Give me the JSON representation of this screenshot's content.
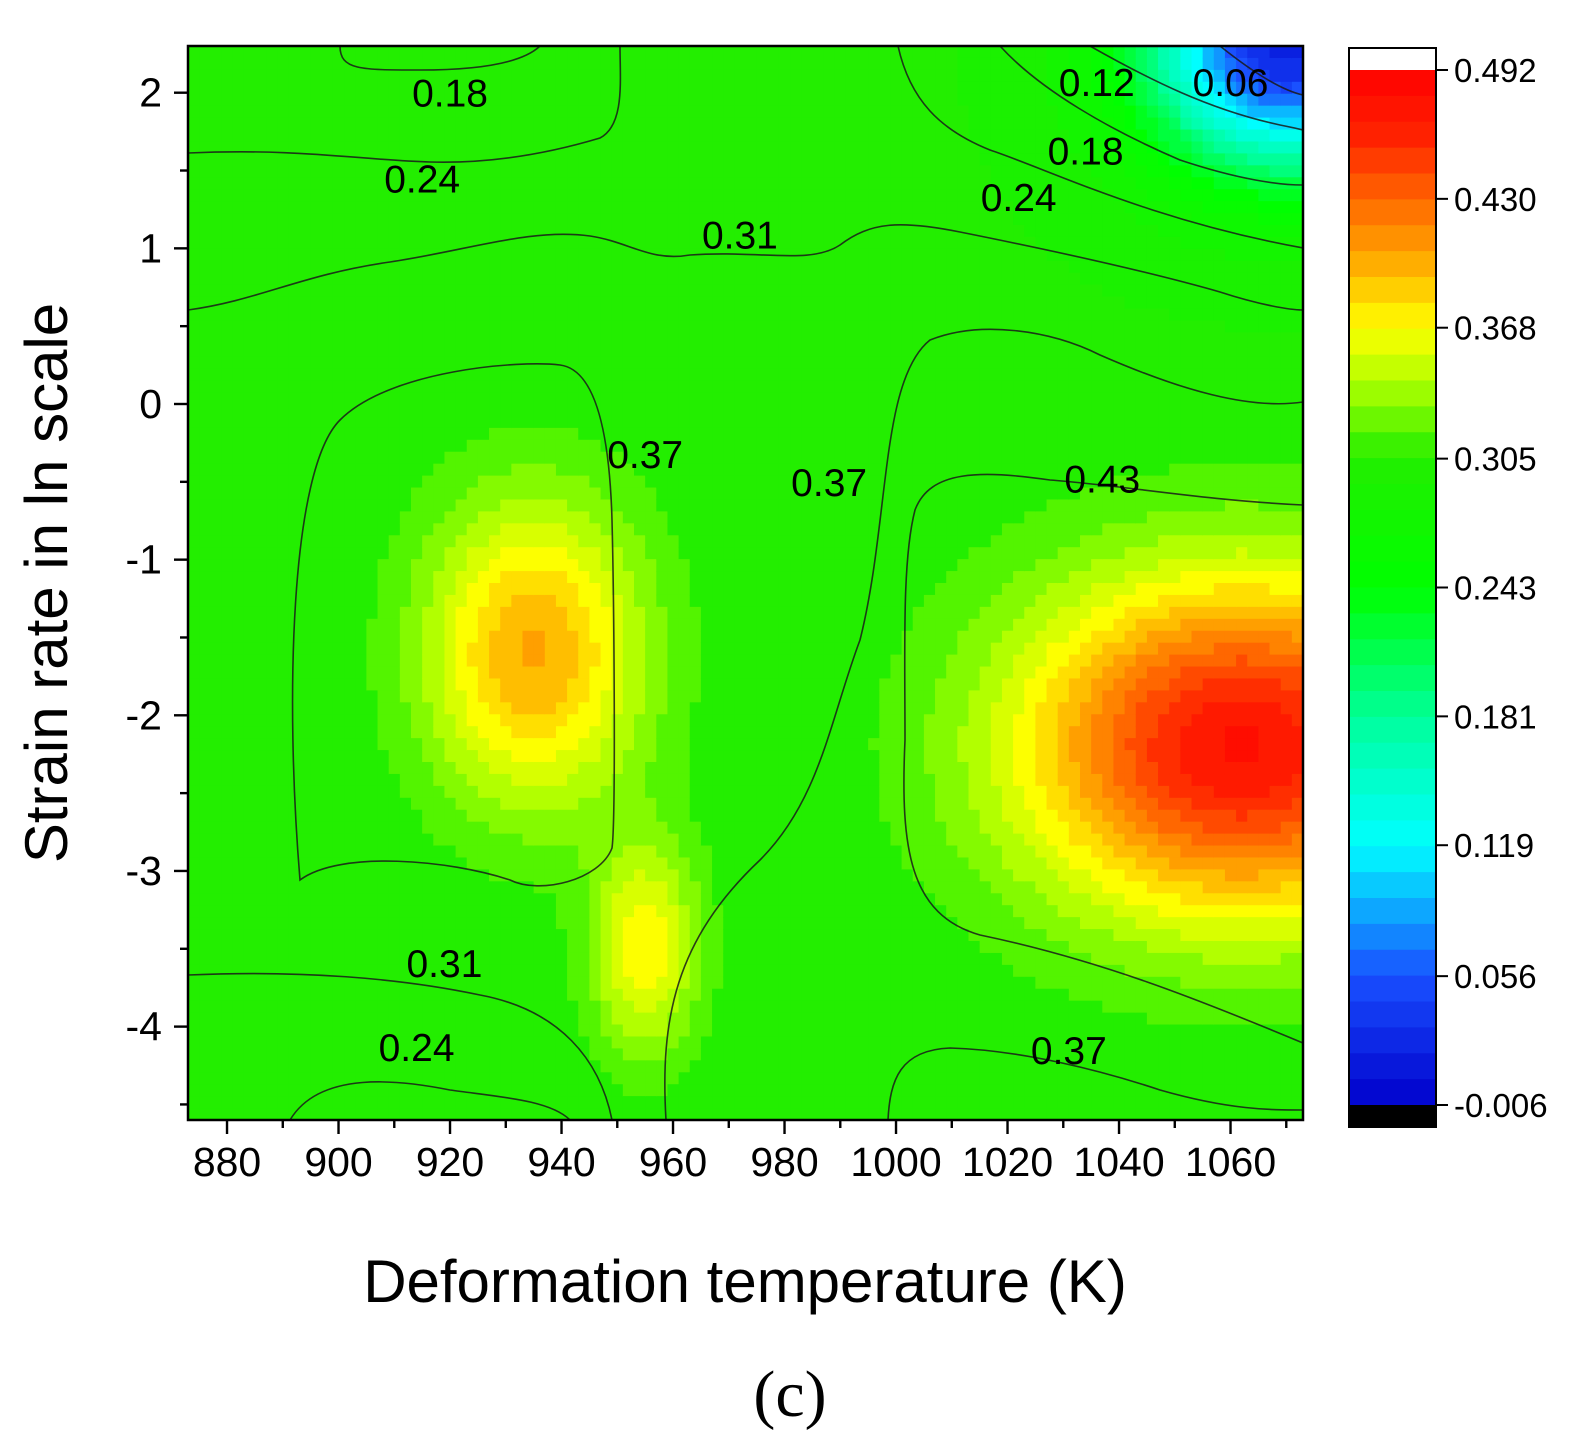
{
  "chart_data": {
    "type": "heatmap",
    "subtype": "filled-contour",
    "xlabel": "Deformation temperature (K)",
    "ylabel": "Strain rate in ln scale",
    "panel_label": "(c)",
    "xlim": [
      873,
      1073
    ],
    "ylim": [
      -4.6,
      2.3
    ],
    "x_ticks": [
      880,
      900,
      920,
      940,
      960,
      980,
      1000,
      1020,
      1040,
      1060
    ],
    "x_tick_labels": [
      "880",
      "900",
      "920",
      "940",
      "960",
      "980",
      "1000",
      "1020",
      "1040",
      "1060"
    ],
    "y_ticks": [
      2,
      1,
      0,
      -1,
      -2,
      -3,
      -4
    ],
    "y_tick_labels": [
      "2",
      "1",
      "0",
      "-1",
      "-2",
      "-3",
      "-4"
    ],
    "colorbar": {
      "min": -0.006,
      "max": 0.492,
      "ticks": [
        0.492,
        0.43,
        0.368,
        0.305,
        0.243,
        0.181,
        0.119,
        0.056,
        -0.006
      ],
      "tick_labels": [
        "0.492",
        "0.430",
        "0.368",
        "0.305",
        "0.243",
        "0.181",
        "0.119",
        "0.056",
        "-0.006"
      ],
      "stops": [
        {
          "value": -0.006,
          "color": "#0000cc"
        },
        {
          "value": 0.056,
          "color": "#1a50ff"
        },
        {
          "value": 0.119,
          "color": "#00ffff"
        },
        {
          "value": 0.181,
          "color": "#00ff99"
        },
        {
          "value": 0.243,
          "color": "#00ff00"
        },
        {
          "value": 0.305,
          "color": "#22ee00"
        },
        {
          "value": 0.34,
          "color": "#aaff00"
        },
        {
          "value": 0.368,
          "color": "#ffff00"
        },
        {
          "value": 0.4,
          "color": "#ffaa00"
        },
        {
          "value": 0.43,
          "color": "#ff6600"
        },
        {
          "value": 0.46,
          "color": "#ff2200"
        },
        {
          "value": 0.492,
          "color": "#ff0000"
        }
      ],
      "under_color": "#000000",
      "over_color": "#ffffff"
    },
    "peaks": [
      {
        "x": 935,
        "y": -1.6,
        "value": 0.4,
        "sx": 20,
        "sy": 1.0
      },
      {
        "x": 1062,
        "y": -2.2,
        "value": 0.475,
        "sx": 40,
        "sy": 1.1
      },
      {
        "x": 1070,
        "y": 2.3,
        "value": 0.02,
        "sx": 25,
        "sy": 0.8
      },
      {
        "x": 955,
        "y": -3.5,
        "value": 0.37,
        "sx": 10,
        "sy": 0.7
      }
    ],
    "contour_labels": [
      {
        "text": "0.18",
        "x": 920,
        "y": 2.0
      },
      {
        "text": "0.24",
        "x": 915,
        "y": 1.45
      },
      {
        "text": "0.12",
        "x": 1036,
        "y": 2.07
      },
      {
        "text": "0.06",
        "x": 1060,
        "y": 2.07
      },
      {
        "text": "0.18",
        "x": 1034,
        "y": 1.63
      },
      {
        "text": "0.24",
        "x": 1022,
        "y": 1.33
      },
      {
        "text": "0.31",
        "x": 972,
        "y": 1.09
      },
      {
        "text": "0.37",
        "x": 955,
        "y": -0.32
      },
      {
        "text": "0.37",
        "x": 988,
        "y": -0.5
      },
      {
        "text": "0.43",
        "x": 1037,
        "y": -0.48
      },
      {
        "text": "0.31",
        "x": 919,
        "y": -3.59
      },
      {
        "text": "0.24",
        "x": 914,
        "y": -4.13
      },
      {
        "text": "0.37",
        "x": 1031,
        "y": -4.15
      }
    ]
  }
}
